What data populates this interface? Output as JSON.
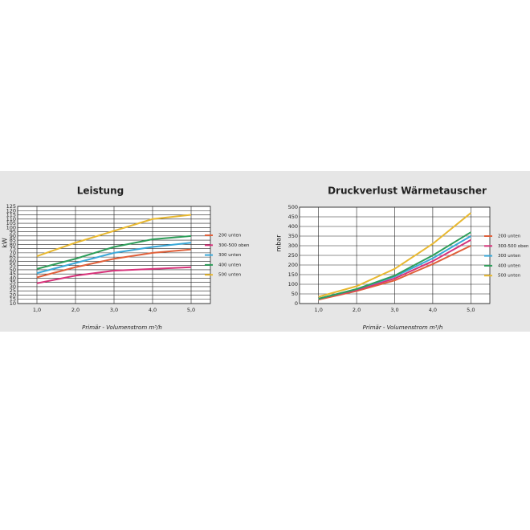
{
  "chart_data": [
    {
      "type": "line",
      "title": "Leistung",
      "x_label": "Primär - Volumenstrom m³/h",
      "y_label": "kW",
      "x": [
        1,
        2,
        3,
        4,
        5
      ],
      "xlim": [
        0.5,
        5.5
      ],
      "xticks": [
        {
          "value": 1,
          "label": "1,0"
        },
        {
          "value": 2,
          "label": "2,0"
        },
        {
          "value": 3,
          "label": "3,0"
        },
        {
          "value": 4,
          "label": "4,0"
        },
        {
          "value": 5,
          "label": "5,0"
        }
      ],
      "ylim": [
        10,
        125
      ],
      "yticks": [
        10,
        15,
        20,
        25,
        30,
        35,
        40,
        45,
        50,
        55,
        60,
        65,
        70,
        75,
        80,
        85,
        90,
        95,
        100,
        105,
        110,
        115,
        120,
        125
      ],
      "grid": true,
      "series": [
        {
          "name": "200 unten",
          "color": "#e0603a",
          "values": [
            41,
            53,
            63,
            70,
            74
          ]
        },
        {
          "name": "300-500 oben",
          "color": "#d6337a",
          "values": [
            34,
            43,
            49,
            51,
            53
          ]
        },
        {
          "name": "300 unten",
          "color": "#3aa8d8",
          "values": [
            46,
            58,
            70,
            77,
            82
          ]
        },
        {
          "name": "400 unten",
          "color": "#2e9e5a",
          "values": [
            51,
            63,
            77,
            86,
            90
          ]
        },
        {
          "name": "500 unten",
          "color": "#e8b830",
          "values": [
            66,
            82,
            96,
            110,
            115
          ]
        }
      ]
    },
    {
      "type": "line",
      "title": "Druckverlust Wärmetauscher",
      "x_label": "Primär - Volumenstrom m³/h",
      "y_label": "mbar",
      "x": [
        1,
        2,
        3,
        4,
        5
      ],
      "xlim": [
        0.5,
        5.5
      ],
      "xticks": [
        {
          "value": 1,
          "label": "1,0"
        },
        {
          "value": 2,
          "label": "2,0"
        },
        {
          "value": 3,
          "label": "3,0"
        },
        {
          "value": 4,
          "label": "4,0"
        },
        {
          "value": 5,
          "label": "5,0"
        }
      ],
      "ylim": [
        0,
        500
      ],
      "yticks": [
        0,
        50,
        100,
        150,
        200,
        250,
        300,
        350,
        400,
        450,
        500
      ],
      "grid": true,
      "series": [
        {
          "name": "200 unten",
          "color": "#e0603a",
          "values": [
            20,
            65,
            120,
            205,
            300
          ]
        },
        {
          "name": "300-500 oben",
          "color": "#d6337a",
          "values": [
            25,
            70,
            130,
            220,
            330
          ]
        },
        {
          "name": "300 unten",
          "color": "#3aa8d8",
          "values": [
            25,
            75,
            140,
            235,
            350
          ]
        },
        {
          "name": "400 unten",
          "color": "#2e9e5a",
          "values": [
            25,
            75,
            145,
            250,
            370
          ]
        },
        {
          "name": "500 unten",
          "color": "#e8b830",
          "values": [
            35,
            90,
            180,
            310,
            470
          ]
        }
      ]
    }
  ]
}
